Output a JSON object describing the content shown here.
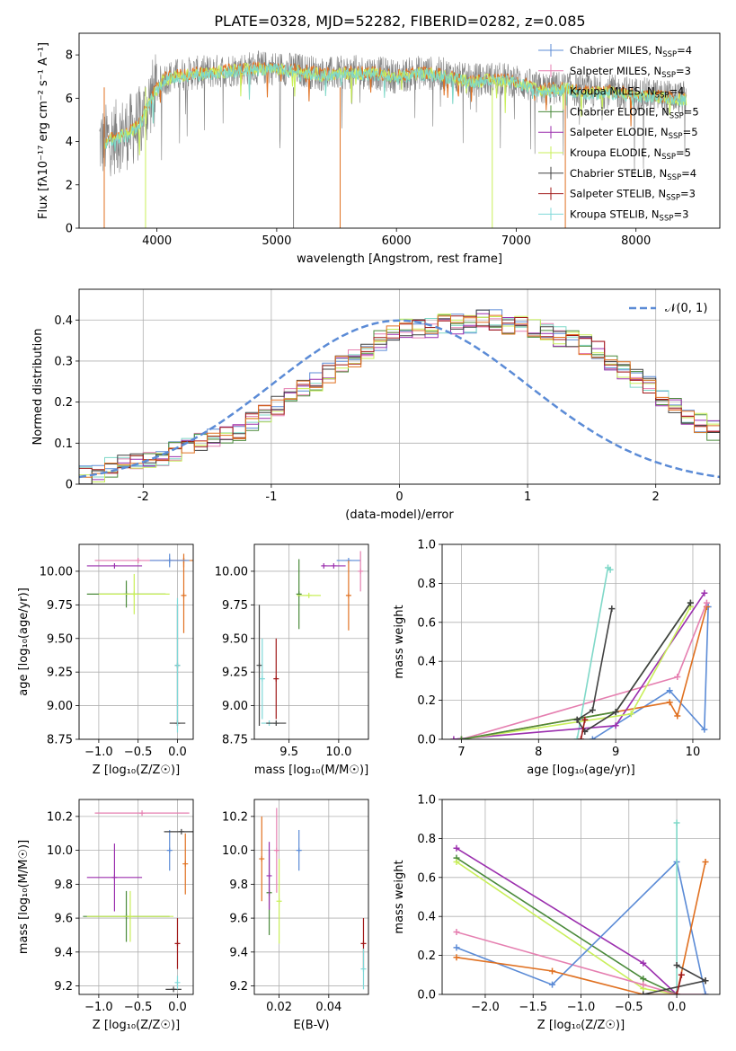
{
  "figure": {
    "title": "PLATE=0328, MJD=52282, FIBERID=0282, z=0.085"
  },
  "colors": {
    "chabrier_miles": "#5b8bd6",
    "salpeter_miles": "#e57fb0",
    "kroupa_miles": "#7fd8c8",
    "chabrier_elodie": "#4a8a3a",
    "salpeter_elodie": "#9b2fae",
    "kroupa_elodie": "#c9ef5a",
    "chabrier_stelib": "#404040",
    "salpeter_stelib": "#a01818",
    "kroupa_stelib": "#7fd8d8",
    "orange": "#e07020",
    "data_gray": "#808080",
    "normal_dashed": "#5b8bd6",
    "grid": "#b0b0b0"
  },
  "chart_data": [
    {
      "id": "spectrum",
      "type": "line",
      "xlabel": "wavelength [Angstrom, rest frame]",
      "ylabel": "Flux [fλ10⁻¹⁷ erg cm⁻² s⁻¹ A⁻¹]",
      "xlim": [
        3350,
        8700
      ],
      "ylim": [
        0,
        9
      ],
      "xticks": [
        4000,
        5000,
        6000,
        7000,
        8000
      ],
      "yticks": [
        0,
        2,
        4,
        6,
        8
      ],
      "grid": false,
      "legend_position": "right",
      "legend": [
        "Chabrier MILES, N_SSP=4",
        "Salpeter MILES, N_SSP=3",
        "Kroupa MILES, N_SSP=4",
        "Chabrier ELODIE, N_SSP=5",
        "Salpeter ELODIE, N_SSP=5",
        "Kroupa ELODIE, N_SSP=5",
        "Chabrier STELIB, N_SSP=4",
        "Salpeter STELIB, N_SSP=3",
        "Kroupa STELIB, N_SSP=3"
      ],
      "series_envelope": {
        "x": [
          3550,
          3650,
          3750,
          3850,
          3950,
          4050,
          4200,
          4400,
          4600,
          4800,
          5000,
          5200,
          5400,
          5600,
          5800,
          6000,
          6200,
          6400,
          6600,
          6800,
          7000,
          7200,
          7400,
          7600,
          7800,
          8000,
          8200,
          8400
        ],
        "y": [
          4.0,
          4.2,
          4.4,
          4.8,
          6.0,
          6.9,
          7.1,
          7.2,
          7.3,
          7.4,
          7.4,
          7.3,
          7.1,
          7.2,
          7.2,
          7.0,
          7.2,
          7.1,
          6.8,
          6.9,
          6.8,
          6.4,
          6.5,
          6.3,
          6.3,
          6.2,
          6.1,
          6.0
        ]
      }
    },
    {
      "id": "residual_histogram",
      "type": "step",
      "xlabel": "(data-model)/error",
      "ylabel": "Normed distribution",
      "xlim": [
        -2.5,
        2.5
      ],
      "ylim": [
        0,
        0.475
      ],
      "xticks": [
        -2,
        -1,
        0,
        1,
        2
      ],
      "yticks": [
        0.0,
        0.1,
        0.2,
        0.3,
        0.4
      ],
      "grid": true,
      "legend_position": "top-right",
      "legend": [
        "𝒩(0, 1)"
      ],
      "bins_start": -2.5,
      "bin_width": 0.1,
      "base_density": [
        0.02,
        0.03,
        0.04,
        0.05,
        0.05,
        0.06,
        0.07,
        0.08,
        0.09,
        0.1,
        0.11,
        0.12,
        0.13,
        0.15,
        0.17,
        0.19,
        0.21,
        0.23,
        0.25,
        0.27,
        0.29,
        0.31,
        0.33,
        0.35,
        0.37,
        0.38,
        0.38,
        0.38,
        0.39,
        0.39,
        0.39,
        0.4,
        0.4,
        0.39,
        0.39,
        0.38,
        0.37,
        0.36,
        0.35,
        0.34,
        0.33,
        0.3,
        0.28,
        0.26,
        0.24,
        0.21,
        0.19,
        0.17,
        0.15,
        0.13,
        0.11,
        0.1,
        0.09,
        0.08,
        0.07,
        0.06,
        0.05,
        0.05,
        0.04,
        0.03
      ]
    },
    {
      "id": "age_vs_Z",
      "type": "errorbar",
      "xlabel": "Z [log₁₀(Z/Z☉)]",
      "ylabel": "age  [log₁₀(age/yr)]",
      "xlim": [
        -1.25,
        0.2
      ],
      "ylim": [
        8.75,
        10.2
      ],
      "xticks": [
        -1.0,
        -0.5,
        0.0
      ],
      "xtick_labels": [
        "−1.0",
        "−0.5",
        "0.0"
      ],
      "yticks": [
        8.75,
        9.0,
        9.25,
        9.5,
        9.75,
        10.0
      ],
      "ytick_labels": [
        "8.75",
        "9.00",
        "9.25",
        "9.50",
        "9.75",
        "10.00"
      ],
      "grid": true,
      "points": [
        {
          "x": -0.8,
          "y": 10.04,
          "xerr": 0.35,
          "yerr": 0.0,
          "color": "#9b2fae"
        },
        {
          "x": -0.5,
          "y": 10.08,
          "xerr": 0.55,
          "yerr": 0.0,
          "color": "#e57fb0"
        },
        {
          "x": 0.08,
          "y": 10.08,
          "xerr": 0.25,
          "yerr": 0.05,
          "color": "#e07020"
        },
        {
          "x": 0.08,
          "y": 9.82,
          "xerr": 0.0,
          "yerr": 0.28,
          "color": "#e07020"
        },
        {
          "x": -0.1,
          "y": 10.08,
          "xerr": 0.25,
          "yerr": 0.05,
          "color": "#5b8bd6"
        },
        {
          "x": -0.65,
          "y": 9.83,
          "xerr": 0.5,
          "yerr": 0.1,
          "color": "#4a8a3a"
        },
        {
          "x": -0.55,
          "y": 9.83,
          "xerr": 0.45,
          "yerr": 0.15,
          "color": "#c9ef5a"
        },
        {
          "x": 0.0,
          "y": 9.3,
          "xerr": 0.0,
          "yerr": 0.45,
          "color": "#404040"
        },
        {
          "x": 0.0,
          "y": 8.87,
          "xerr": 0.1,
          "yerr": 0.0,
          "color": "#404040"
        },
        {
          "x": 0.0,
          "y": 9.3,
          "xerr": 0.0,
          "yerr": 0.5,
          "color": "#7fd8d8"
        }
      ]
    },
    {
      "id": "age_vs_mass",
      "type": "errorbar",
      "xlabel": "mass [log₁₀(M/M☉)]",
      "ylabel": "",
      "xlim": [
        9.15,
        10.3
      ],
      "ylim": [
        8.75,
        10.2
      ],
      "xticks": [
        9.5,
        10.0
      ],
      "xtick_labels": [
        "9.5",
        "10.0"
      ],
      "yticks": [
        8.75,
        9.0,
        9.25,
        9.5,
        9.75,
        10.0
      ],
      "ytick_labels": [
        "8.75",
        "9.00",
        "9.25",
        "9.50",
        "9.75",
        "10.00"
      ],
      "grid": true,
      "points": [
        {
          "x": 9.2,
          "y": 9.3,
          "xerr": 0.0,
          "yerr": 0.45,
          "color": "#404040"
        },
        {
          "x": 9.23,
          "y": 9.2,
          "xerr": 0.0,
          "yerr": 0.3,
          "color": "#7fd8d8"
        },
        {
          "x": 9.3,
          "y": 8.87,
          "xerr": 0.08,
          "yerr": 0.0,
          "color": "#7fd8d8"
        },
        {
          "x": 9.37,
          "y": 8.87,
          "xerr": 0.1,
          "yerr": 0.0,
          "color": "#404040"
        },
        {
          "x": 9.37,
          "y": 9.2,
          "xerr": 0.0,
          "yerr": 0.3,
          "color": "#a01818"
        },
        {
          "x": 9.6,
          "y": 9.83,
          "xerr": 0.0,
          "yerr": 0.26,
          "color": "#4a8a3a"
        },
        {
          "x": 9.7,
          "y": 9.82,
          "xerr": 0.12,
          "yerr": 0.0,
          "color": "#c9ef5a"
        },
        {
          "x": 9.85,
          "y": 10.04,
          "xerr": 0.0,
          "yerr": 0.0,
          "color": "#9b2fae"
        },
        {
          "x": 9.95,
          "y": 10.04,
          "xerr": 0.12,
          "yerr": 0.0,
          "color": "#9b2fae"
        },
        {
          "x": 10.1,
          "y": 10.08,
          "xerr": 0.12,
          "yerr": 0.0,
          "color": "#5b8bd6"
        },
        {
          "x": 10.1,
          "y": 9.82,
          "xerr": 0.0,
          "yerr": 0.26,
          "color": "#e07020"
        },
        {
          "x": 10.22,
          "y": 10.0,
          "xerr": 0.0,
          "yerr": 0.15,
          "color": "#e57fb0"
        }
      ]
    },
    {
      "id": "massweight_vs_age",
      "type": "line",
      "xlabel": "age  [log₁₀(age/yr)]",
      "ylabel": "mass weight",
      "xlim": [
        6.75,
        10.35
      ],
      "ylim": [
        0,
        1
      ],
      "xticks": [
        7,
        8,
        9,
        10
      ],
      "xtick_labels": [
        "7",
        "8",
        "9",
        "10"
      ],
      "yticks": [
        0.0,
        0.2,
        0.4,
        0.6,
        0.8,
        1.0
      ],
      "ytick_labels": [
        "0.0",
        "0.2",
        "0.4",
        "0.6",
        "0.8",
        "1.0"
      ],
      "grid": true,
      "series": [
        {
          "color": "#5b8bd6",
          "x": [
            8.7,
            9.7,
            10.15,
            10.2
          ],
          "y": [
            0.0,
            0.25,
            0.05,
            0.68
          ]
        },
        {
          "color": "#e07020",
          "x": [
            7.0,
            9.7,
            9.8,
            10.18
          ],
          "y": [
            0.0,
            0.19,
            0.12,
            0.68
          ]
        },
        {
          "color": "#e57fb0",
          "x": [
            7.0,
            9.8,
            10.18
          ],
          "y": [
            0.0,
            0.32,
            0.7
          ]
        },
        {
          "color": "#7fd8c8",
          "x": [
            8.5,
            8.9,
            8.93
          ],
          "y": [
            0.0,
            0.88,
            0.87
          ]
        },
        {
          "color": "#9b2fae",
          "x": [
            6.9,
            9.0,
            10.15
          ],
          "y": [
            0.0,
            0.07,
            0.75
          ]
        },
        {
          "color": "#c9ef5a",
          "x": [
            7.0,
            9.2,
            9.97
          ],
          "y": [
            0.0,
            0.13,
            0.68
          ]
        },
        {
          "color": "#4a8a3a",
          "x": [
            7.0,
            9.0,
            9.97
          ],
          "y": [
            0.0,
            0.14,
            0.7
          ]
        },
        {
          "color": "#404040",
          "x": [
            8.5,
            8.7,
            8.95
          ],
          "y": [
            0.1,
            0.15,
            0.67
          ]
        },
        {
          "color": "#404040",
          "x": [
            8.5,
            8.6,
            9.0,
            9.97
          ],
          "y": [
            0.1,
            0.04,
            0.14,
            0.7
          ]
        },
        {
          "color": "#a01818",
          "x": [
            8.55,
            8.6
          ],
          "y": [
            0.0,
            0.1
          ]
        }
      ]
    },
    {
      "id": "mass_vs_Z",
      "type": "errorbar",
      "xlabel": "Z [log₁₀(Z/Z☉)]",
      "ylabel": "mass [log₁₀(M/M☉)]",
      "xlim": [
        -1.25,
        0.2
      ],
      "ylim": [
        9.15,
        10.3
      ],
      "xticks": [
        -1.0,
        -0.5,
        0.0
      ],
      "xtick_labels": [
        "−1.0",
        "−0.5",
        "0.0"
      ],
      "yticks": [
        9.2,
        9.4,
        9.6,
        9.8,
        10.0,
        10.2
      ],
      "ytick_labels": [
        "9.2",
        "9.4",
        "9.6",
        "9.8",
        "10.0",
        "10.2"
      ],
      "grid": true,
      "points": [
        {
          "x": -0.45,
          "y": 10.22,
          "xerr": 0.6,
          "yerr": 0.0,
          "color": "#e57fb0"
        },
        {
          "x": -0.1,
          "y": 10.0,
          "xerr": 0.0,
          "yerr": 0.12,
          "color": "#5b8bd6"
        },
        {
          "x": 0.05,
          "y": 10.11,
          "xerr": 0.22,
          "yerr": 0.0,
          "color": "#404040"
        },
        {
          "x": 0.1,
          "y": 9.92,
          "xerr": 0.0,
          "yerr": 0.18,
          "color": "#e07020"
        },
        {
          "x": -0.8,
          "y": 9.84,
          "xerr": 0.35,
          "yerr": 0.2,
          "color": "#9b2fae"
        },
        {
          "x": -0.65,
          "y": 9.61,
          "xerr": 0.55,
          "yerr": 0.15,
          "color": "#4a8a3a"
        },
        {
          "x": -0.6,
          "y": 9.61,
          "xerr": 0.55,
          "yerr": 0.15,
          "color": "#c9ef5a"
        },
        {
          "x": 0.0,
          "y": 9.45,
          "xerr": 0.0,
          "yerr": 0.15,
          "color": "#a01818"
        },
        {
          "x": -0.05,
          "y": 9.18,
          "xerr": 0.1,
          "yerr": 0.0,
          "color": "#404040"
        },
        {
          "x": 0.0,
          "y": 9.22,
          "xerr": 0.0,
          "yerr": 0.04,
          "color": "#7fd8d8"
        }
      ]
    },
    {
      "id": "mass_vs_ebv",
      "type": "errorbar",
      "xlabel": "E(B-V)",
      "ylabel": "",
      "xlim": [
        0.01,
        0.056
      ],
      "ylim": [
        9.15,
        10.3
      ],
      "xticks": [
        0.02,
        0.04
      ],
      "xtick_labels": [
        "0.02",
        "0.04"
      ],
      "yticks": [
        9.2,
        9.4,
        9.6,
        9.8,
        10.0,
        10.2
      ],
      "ytick_labels": [
        "9.2",
        "9.4",
        "9.6",
        "9.8",
        "10.0",
        "10.2"
      ],
      "grid": true,
      "points": [
        {
          "x": 0.013,
          "y": 9.95,
          "xerr": 0.0,
          "yerr": 0.25,
          "color": "#e07020"
        },
        {
          "x": 0.016,
          "y": 9.75,
          "xerr": 0.0,
          "yerr": 0.25,
          "color": "#4a8a3a"
        },
        {
          "x": 0.016,
          "y": 9.85,
          "xerr": 0.0,
          "yerr": 0.2,
          "color": "#9b2fae"
        },
        {
          "x": 0.019,
          "y": 10.0,
          "xerr": 0.0,
          "yerr": 0.25,
          "color": "#e57fb0"
        },
        {
          "x": 0.02,
          "y": 9.7,
          "xerr": 0.0,
          "yerr": 0.25,
          "color": "#c9ef5a"
        },
        {
          "x": 0.028,
          "y": 10.0,
          "xerr": 0.0,
          "yerr": 0.12,
          "color": "#5b8bd6"
        },
        {
          "x": 0.054,
          "y": 9.45,
          "xerr": 0.0,
          "yerr": 0.15,
          "color": "#a01818"
        },
        {
          "x": 0.054,
          "y": 9.3,
          "xerr": 0.0,
          "yerr": 0.12,
          "color": "#7fd8d8"
        }
      ]
    },
    {
      "id": "massweight_vs_Z",
      "type": "line",
      "xlabel": "Z [log₁₀(Z/Z☉)]",
      "ylabel": "mass weight",
      "xlim": [
        -2.45,
        0.45
      ],
      "ylim": [
        0,
        1
      ],
      "xticks": [
        -2.0,
        -1.5,
        -1.0,
        -0.5,
        0.0
      ],
      "xtick_labels": [
        "−2.0",
        "−1.5",
        "−1.0",
        "−0.5",
        "0.0"
      ],
      "yticks": [
        0.0,
        0.2,
        0.4,
        0.6,
        0.8,
        1.0
      ],
      "ytick_labels": [
        "0.0",
        "0.2",
        "0.4",
        "0.6",
        "0.8",
        "1.0"
      ],
      "grid": true,
      "series": [
        {
          "color": "#9b2fae",
          "x": [
            -2.3,
            -0.35,
            0.0
          ],
          "y": [
            0.75,
            0.16,
            0.0
          ]
        },
        {
          "color": "#4a8a3a",
          "x": [
            -2.3,
            -0.35,
            0.0
          ],
          "y": [
            0.7,
            0.08,
            0.0
          ]
        },
        {
          "color": "#c9ef5a",
          "x": [
            -2.3,
            -0.35,
            0.0
          ],
          "y": [
            0.68,
            0.03,
            0.0
          ]
        },
        {
          "color": "#e57fb0",
          "x": [
            -2.3,
            -0.35,
            0.0,
            0.3
          ],
          "y": [
            0.32,
            0.05,
            0.0,
            0.0
          ]
        },
        {
          "color": "#5b8bd6",
          "x": [
            -2.3,
            -1.3,
            0.0,
            0.3
          ],
          "y": [
            0.24,
            0.05,
            0.68,
            0.0
          ]
        },
        {
          "color": "#e07020",
          "x": [
            -2.3,
            -1.3,
            -0.35,
            0.0,
            0.3
          ],
          "y": [
            0.19,
            0.12,
            0.0,
            0.0,
            0.68
          ]
        },
        {
          "color": "#7fd8c8",
          "x": [
            0.0,
            0.0
          ],
          "y": [
            0.0,
            0.88
          ]
        },
        {
          "color": "#404040",
          "x": [
            -0.35,
            0.3
          ],
          "y": [
            0.0,
            0.07
          ]
        },
        {
          "color": "#404040",
          "x": [
            0.0,
            0.3
          ],
          "y": [
            0.15,
            0.07
          ]
        },
        {
          "color": "#a01818",
          "x": [
            0.0,
            0.05
          ],
          "y": [
            0.0,
            0.1
          ]
        }
      ]
    }
  ]
}
